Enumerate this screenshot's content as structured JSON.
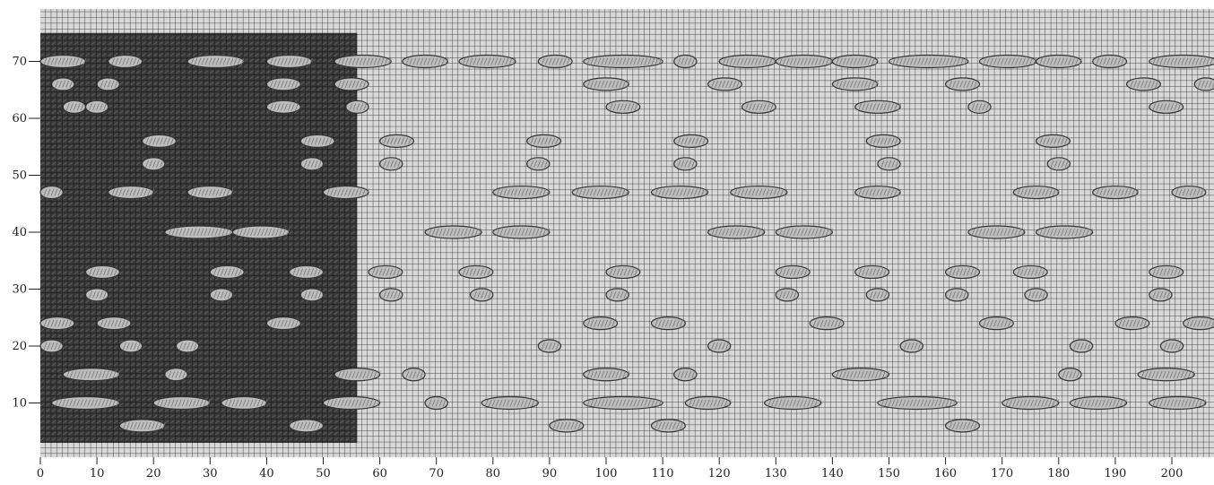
{
  "figure": {
    "description_free": true,
    "colors": {
      "background": "#ffffff",
      "grid_light": "#cfcfcf",
      "grid_line": "#555555",
      "dark_panel": "#2b2b2b",
      "float_fill": "#b8b8b8",
      "float_stroke": "#3a3a3a"
    }
  },
  "axes": {
    "x_ticks": [
      "0",
      "10",
      "20",
      "30",
      "40",
      "50",
      "60",
      "70",
      "80",
      "90",
      "100",
      "110",
      "120",
      "130",
      "140",
      "150",
      "160",
      "170",
      "180",
      "190",
      "200"
    ],
    "y_ticks": [
      "10",
      "20",
      "30",
      "40",
      "50",
      "60",
      "70"
    ],
    "x_range": [
      0,
      208
    ],
    "y_range": [
      0,
      75
    ]
  },
  "pattern": {
    "dark_region": {
      "x_from": 0,
      "x_to": 56,
      "y_from": 3,
      "y_to": 75
    },
    "floats": [
      [
        0,
        70,
        8
      ],
      [
        12,
        70,
        6
      ],
      [
        26,
        70,
        10
      ],
      [
        40,
        70,
        8
      ],
      [
        52,
        70,
        10
      ],
      [
        64,
        70,
        8
      ],
      [
        74,
        70,
        10
      ],
      [
        88,
        70,
        6
      ],
      [
        96,
        70,
        14
      ],
      [
        112,
        70,
        4
      ],
      [
        120,
        70,
        10
      ],
      [
        130,
        70,
        10
      ],
      [
        140,
        70,
        8
      ],
      [
        150,
        70,
        14
      ],
      [
        166,
        70,
        10
      ],
      [
        176,
        70,
        8
      ],
      [
        186,
        70,
        6
      ],
      [
        196,
        70,
        12
      ],
      [
        2,
        66,
        4
      ],
      [
        10,
        66,
        4
      ],
      [
        40,
        66,
        6
      ],
      [
        52,
        66,
        6
      ],
      [
        96,
        66,
        8
      ],
      [
        118,
        66,
        6
      ],
      [
        140,
        66,
        8
      ],
      [
        160,
        66,
        6
      ],
      [
        192,
        66,
        6
      ],
      [
        204,
        66,
        4
      ],
      [
        4,
        62,
        4
      ],
      [
        8,
        62,
        4
      ],
      [
        40,
        62,
        6
      ],
      [
        54,
        62,
        4
      ],
      [
        100,
        62,
        6
      ],
      [
        124,
        62,
        6
      ],
      [
        144,
        62,
        8
      ],
      [
        164,
        62,
        4
      ],
      [
        196,
        62,
        6
      ],
      [
        18,
        56,
        6
      ],
      [
        46,
        56,
        6
      ],
      [
        60,
        56,
        6
      ],
      [
        86,
        56,
        6
      ],
      [
        112,
        56,
        6
      ],
      [
        146,
        56,
        6
      ],
      [
        176,
        56,
        6
      ],
      [
        18,
        52,
        4
      ],
      [
        46,
        52,
        4
      ],
      [
        60,
        52,
        4
      ],
      [
        86,
        52,
        4
      ],
      [
        112,
        52,
        4
      ],
      [
        148,
        52,
        4
      ],
      [
        178,
        52,
        4
      ],
      [
        0,
        47,
        4
      ],
      [
        12,
        47,
        8
      ],
      [
        26,
        47,
        8
      ],
      [
        50,
        47,
        8
      ],
      [
        80,
        47,
        10
      ],
      [
        94,
        47,
        10
      ],
      [
        108,
        47,
        10
      ],
      [
        122,
        47,
        10
      ],
      [
        144,
        47,
        8
      ],
      [
        172,
        47,
        8
      ],
      [
        186,
        47,
        8
      ],
      [
        200,
        47,
        6
      ],
      [
        22,
        40,
        12
      ],
      [
        34,
        40,
        10
      ],
      [
        68,
        40,
        10
      ],
      [
        80,
        40,
        10
      ],
      [
        118,
        40,
        10
      ],
      [
        130,
        40,
        10
      ],
      [
        164,
        40,
        10
      ],
      [
        176,
        40,
        10
      ],
      [
        8,
        33,
        6
      ],
      [
        30,
        33,
        6
      ],
      [
        44,
        33,
        6
      ],
      [
        58,
        33,
        6
      ],
      [
        74,
        33,
        6
      ],
      [
        100,
        33,
        6
      ],
      [
        130,
        33,
        6
      ],
      [
        144,
        33,
        6
      ],
      [
        160,
        33,
        6
      ],
      [
        172,
        33,
        6
      ],
      [
        196,
        33,
        6
      ],
      [
        8,
        29,
        4
      ],
      [
        30,
        29,
        4
      ],
      [
        46,
        29,
        4
      ],
      [
        60,
        29,
        4
      ],
      [
        76,
        29,
        4
      ],
      [
        100,
        29,
        4
      ],
      [
        130,
        29,
        4
      ],
      [
        146,
        29,
        4
      ],
      [
        160,
        29,
        4
      ],
      [
        174,
        29,
        4
      ],
      [
        196,
        29,
        4
      ],
      [
        0,
        24,
        6
      ],
      [
        10,
        24,
        6
      ],
      [
        40,
        24,
        6
      ],
      [
        96,
        24,
        6
      ],
      [
        108,
        24,
        6
      ],
      [
        136,
        24,
        6
      ],
      [
        166,
        24,
        6
      ],
      [
        190,
        24,
        6
      ],
      [
        202,
        24,
        6
      ],
      [
        0,
        20,
        4
      ],
      [
        14,
        20,
        4
      ],
      [
        24,
        20,
        4
      ],
      [
        88,
        20,
        4
      ],
      [
        118,
        20,
        4
      ],
      [
        152,
        20,
        4
      ],
      [
        182,
        20,
        4
      ],
      [
        198,
        20,
        4
      ],
      [
        4,
        15,
        10
      ],
      [
        22,
        15,
        4
      ],
      [
        52,
        15,
        8
      ],
      [
        64,
        15,
        4
      ],
      [
        96,
        15,
        8
      ],
      [
        112,
        15,
        4
      ],
      [
        140,
        15,
        10
      ],
      [
        180,
        15,
        4
      ],
      [
        194,
        15,
        10
      ],
      [
        2,
        10,
        12
      ],
      [
        20,
        10,
        10
      ],
      [
        32,
        10,
        8
      ],
      [
        50,
        10,
        10
      ],
      [
        68,
        10,
        4
      ],
      [
        78,
        10,
        10
      ],
      [
        96,
        10,
        14
      ],
      [
        114,
        10,
        8
      ],
      [
        128,
        10,
        10
      ],
      [
        148,
        10,
        14
      ],
      [
        170,
        10,
        10
      ],
      [
        182,
        10,
        10
      ],
      [
        196,
        10,
        10
      ],
      [
        14,
        6,
        8
      ],
      [
        44,
        6,
        6
      ],
      [
        90,
        6,
        6
      ],
      [
        108,
        6,
        6
      ],
      [
        160,
        6,
        6
      ]
    ]
  }
}
